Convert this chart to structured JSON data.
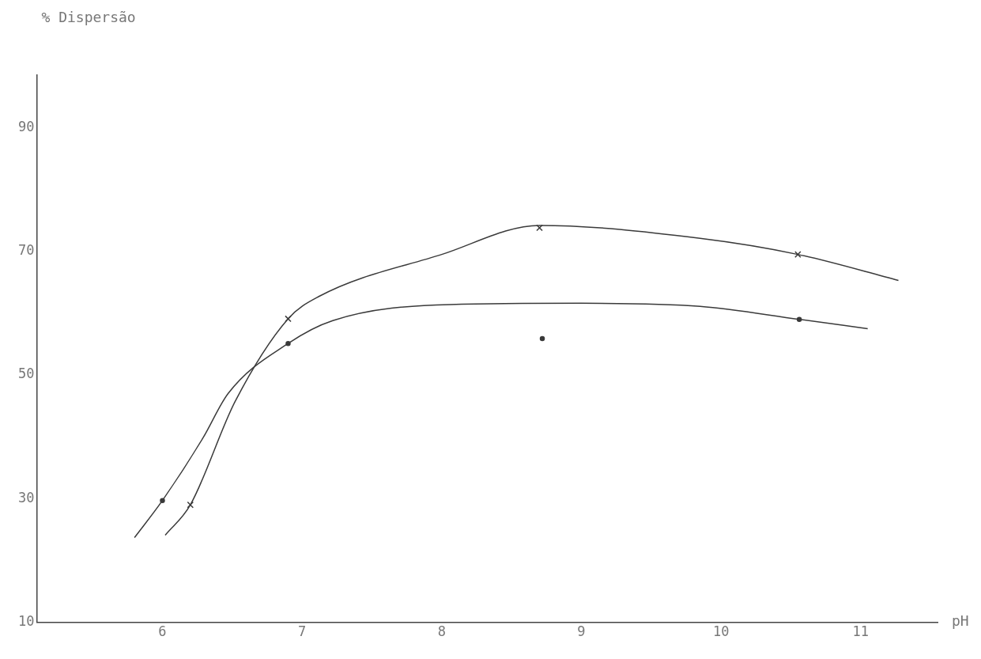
{
  "chart_data": {
    "type": "line",
    "xlabel": "pH",
    "ylabel": "% Dispersão",
    "xlim": [
      5.1,
      11.55
    ],
    "ylim": [
      10,
      98.5
    ],
    "xticks": [
      6,
      7,
      8,
      9,
      10,
      11
    ],
    "yticks": [
      10,
      30,
      50,
      70,
      90
    ],
    "grid": false,
    "legend": false,
    "series": [
      {
        "type": "line",
        "color": "#3a3a3a",
        "marker": "none",
        "x": [
          6.02,
          6.2,
          6.52,
          6.9,
          7.12,
          8,
          8.7,
          9.85,
          10.55,
          11.27
        ],
        "values": [
          24.1,
          29,
          45.7,
          59.1,
          62.7,
          69.5,
          74.2,
          72.1,
          69.5,
          65.3
        ]
      },
      {
        "type": "line",
        "color": "#3a3a3a",
        "marker": "none",
        "x": [
          5.8,
          6,
          6.29,
          6.47,
          6.9,
          7.22,
          8.06,
          9,
          9.85,
          10.56,
          11.05
        ],
        "values": [
          23.7,
          29.7,
          39.8,
          47,
          55.1,
          58.8,
          61.4,
          61.6,
          61.1,
          59,
          57.5
        ]
      },
      {
        "type": "scatter",
        "color": "#3a3a3a",
        "marker": "cross",
        "x": [
          6.2,
          6.9,
          8.7,
          10.55
        ],
        "values": [
          29,
          59.1,
          73.8,
          69.5
        ]
      },
      {
        "type": "scatter",
        "color": "#3a3a3a",
        "marker": "circle",
        "x": [
          6,
          6.9,
          8.72,
          10.56
        ],
        "values": [
          29.7,
          55.1,
          55.9,
          59
        ]
      }
    ]
  }
}
